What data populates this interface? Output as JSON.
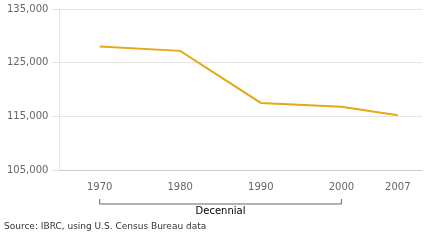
{
  "chart_data": {
    "type": "line",
    "x": [
      1970,
      1980,
      1990,
      2000,
      2007
    ],
    "values": [
      128000,
      127200,
      117500,
      116800,
      115200
    ],
    "color": "#E6A817",
    "xlim": [
      1965,
      2010
    ],
    "xticks": [
      1970,
      1980,
      1990,
      2000,
      2007
    ],
    "ylim": [
      105000,
      135000
    ],
    "yticks": [
      {
        "value": 105000,
        "label": "105,000"
      },
      {
        "value": 115000,
        "label": "115,000"
      },
      {
        "value": 125000,
        "label": "125,000"
      },
      {
        "value": 135000,
        "label": "135,000"
      }
    ],
    "grid": "y",
    "annotations": [
      {
        "text": "Decennial",
        "x": [
          1970,
          2000
        ]
      },
      {
        "text": "Source: IBRC, using U.S. Census Bureau data"
      }
    ]
  }
}
